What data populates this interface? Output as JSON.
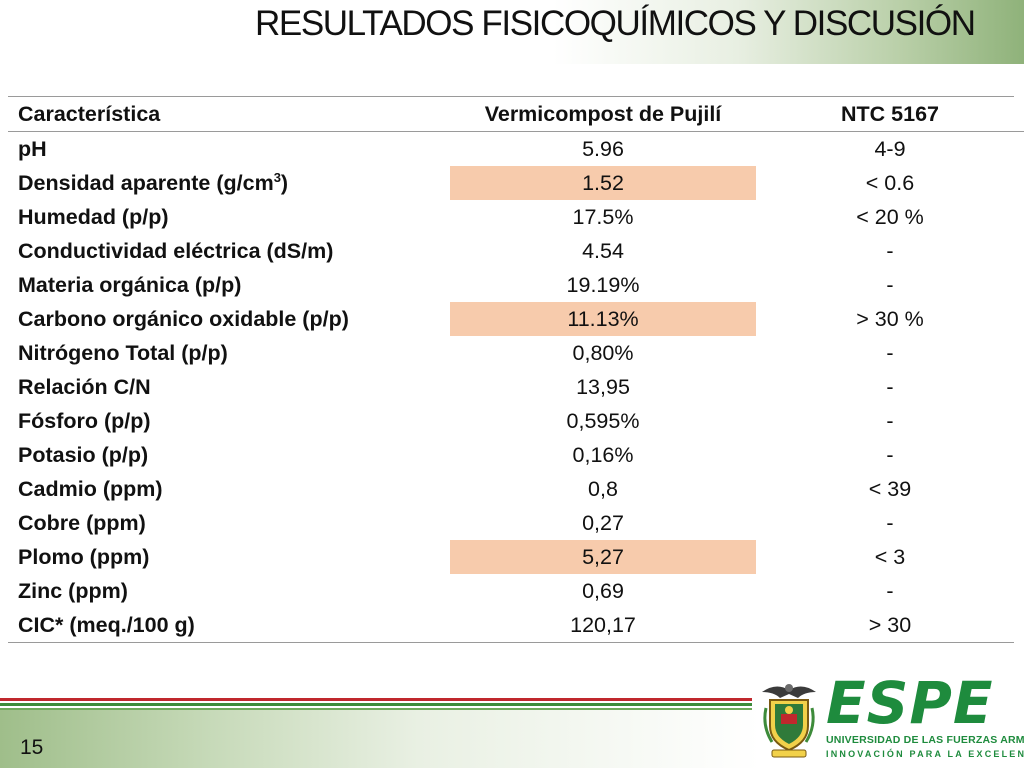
{
  "slide": {
    "title": "RESULTADOS FISICOQUÍMICOS Y DISCUSIÓN",
    "page_number": "15"
  },
  "table": {
    "headers": [
      "Característica",
      "Vermicompost de Pujilí",
      "NTC 5167"
    ],
    "rows": [
      {
        "caracteristica": "pH",
        "vermicompost": "5.96",
        "ntc": "4-9",
        "highlight": false
      },
      {
        "caracteristica_base": "Densidad aparente (g/cm",
        "caracteristica_sup": "3",
        "caracteristica_end": ")",
        "vermicompost": "1.52",
        "ntc": "< 0.6",
        "highlight": true
      },
      {
        "caracteristica": "Humedad (p/p)",
        "vermicompost": "17.5%",
        "ntc": "< 20 %",
        "highlight": false
      },
      {
        "caracteristica": "Conductividad eléctrica (dS/m)",
        "vermicompost": "4.54",
        "ntc": "-",
        "highlight": false
      },
      {
        "caracteristica": "Materia orgánica (p/p)",
        "vermicompost": "19.19%",
        "ntc": "-",
        "highlight": false
      },
      {
        "caracteristica": "Carbono orgánico oxidable (p/p)",
        "vermicompost": "11.13%",
        "ntc": "> 30 %",
        "highlight": true
      },
      {
        "caracteristica": "Nitrógeno Total (p/p)",
        "vermicompost": "0,80%",
        "ntc": "-",
        "highlight": false
      },
      {
        "caracteristica": "Relación C/N",
        "vermicompost": "13,95",
        "ntc": "-",
        "highlight": false
      },
      {
        "caracteristica": "Fósforo (p/p)",
        "vermicompost": "0,595%",
        "ntc": "-",
        "highlight": false
      },
      {
        "caracteristica": "Potasio (p/p)",
        "vermicompost": "0,16%",
        "ntc": "-",
        "highlight": false
      },
      {
        "caracteristica": "Cadmio (ppm)",
        "vermicompost": "0,8",
        "ntc": "< 39",
        "highlight": false
      },
      {
        "caracteristica": "Cobre (ppm)",
        "vermicompost": "0,27",
        "ntc": "-",
        "highlight": false
      },
      {
        "caracteristica": "Plomo (ppm)",
        "vermicompost": "5,27",
        "ntc": "< 3",
        "highlight": true
      },
      {
        "caracteristica": "Zinc (ppm)",
        "vermicompost": "0,69",
        "ntc": "-",
        "highlight": false
      },
      {
        "caracteristica": "CIC* (meq./100 g)",
        "vermicompost": "120,17",
        "ntc": "> 30",
        "highlight": false
      }
    ]
  },
  "logo": {
    "name": "ESPE",
    "subtitle": "UNIVERSIDAD DE LAS FUERZAS ARMADAS",
    "tagline": "INNOVACIÓN PARA LA EXCELENCIA",
    "brand_color": "#1e8b3d",
    "crest_icon": "university-crest-icon"
  },
  "colors": {
    "highlight": "#f7cbac",
    "stripe_red": "#c0282d",
    "stripe_green": "#3d8b3a"
  }
}
